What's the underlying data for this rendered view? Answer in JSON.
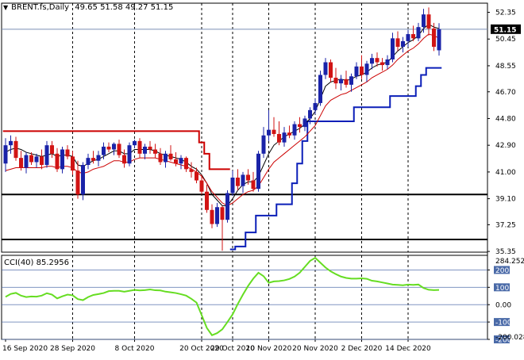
{
  "header": {
    "symbol_label": "BRENT.fs,Daily",
    "ohlc_text": "49.65 51.58 49.27 51.15",
    "current_price": "51.15"
  },
  "cci_panel": {
    "label": "CCI(40) 85.2956",
    "top_value": "284.2522",
    "bottom_value": "-200.028"
  },
  "colors": {
    "bull": "#1a23a8",
    "bear": "#d11414",
    "ma_fast": "#000000",
    "ma_red": "#cc0000",
    "stop_red": "#cc0000",
    "stop_blue": "#0b1fb8",
    "cci_line": "#66dd22",
    "cci_levels": "#4a6aa8",
    "support": "#000000"
  },
  "chart_data": [
    {
      "type": "candlestick",
      "y_ticks": [
        "52.35",
        "50.45",
        "48.55",
        "46.70",
        "44.80",
        "42.90",
        "41.00",
        "39.10",
        "37.25",
        "35.35"
      ],
      "ylim": [
        35.3,
        53.0
      ],
      "x_ticks": [
        "16 Sep 2020",
        "28 Sep 2020",
        "8 Oct 2020",
        "20 Oct 2020",
        "29 Oct 2020",
        "10 Nov 2020",
        "20 Nov 2020",
        "2 Dec 2020",
        "14 Dec 2020"
      ],
      "current_price_line": 51.15,
      "support_lines": [
        39.4,
        36.2
      ],
      "candles": [
        [
          41.6,
          43.4,
          41.0,
          42.9
        ],
        [
          42.9,
          43.6,
          42.3,
          43.2
        ],
        [
          43.2,
          43.5,
          41.8,
          42.0
        ],
        [
          42.0,
          42.5,
          41.1,
          41.3
        ],
        [
          41.3,
          42.4,
          40.9,
          42.2
        ],
        [
          42.2,
          42.4,
          41.5,
          41.7
        ],
        [
          41.7,
          42.3,
          41.3,
          42.1
        ],
        [
          42.1,
          42.6,
          41.2,
          41.5
        ],
        [
          41.5,
          43.2,
          41.3,
          42.9
        ],
        [
          42.9,
          43.2,
          42.0,
          42.3
        ],
        [
          42.3,
          42.7,
          41.0,
          41.2
        ],
        [
          41.2,
          42.8,
          40.9,
          42.6
        ],
        [
          42.6,
          42.9,
          41.9,
          42.1
        ],
        [
          42.1,
          42.5,
          40.8,
          41.1
        ],
        [
          41.1,
          41.8,
          39.1,
          39.4
        ],
        [
          39.4,
          41.7,
          39.0,
          41.5
        ],
        [
          41.5,
          42.3,
          41.2,
          42.0
        ],
        [
          42.0,
          42.5,
          41.6,
          41.8
        ],
        [
          41.8,
          42.5,
          41.4,
          42.2
        ],
        [
          42.2,
          43.1,
          41.9,
          42.8
        ],
        [
          42.8,
          43.1,
          42.4,
          42.6
        ],
        [
          42.6,
          43.1,
          42.2,
          43.0
        ],
        [
          43.0,
          43.3,
          42.0,
          42.2
        ],
        [
          42.2,
          42.6,
          41.3,
          41.6
        ],
        [
          41.6,
          43.1,
          41.4,
          42.9
        ],
        [
          42.9,
          43.3,
          42.7,
          43.2
        ],
        [
          43.2,
          43.4,
          42.0,
          42.3
        ],
        [
          42.3,
          43.0,
          41.9,
          42.8
        ],
        [
          42.8,
          43.2,
          42.3,
          42.6
        ],
        [
          42.6,
          43.0,
          42.0,
          42.3
        ],
        [
          42.3,
          42.7,
          41.5,
          41.7
        ],
        [
          41.7,
          42.5,
          41.3,
          42.3
        ],
        [
          42.3,
          42.9,
          41.8,
          41.9
        ],
        [
          41.9,
          42.4,
          41.4,
          41.6
        ],
        [
          41.6,
          42.2,
          41.2,
          42.0
        ],
        [
          42.0,
          42.1,
          41.0,
          41.2
        ],
        [
          41.2,
          41.7,
          40.6,
          41.0
        ],
        [
          41.0,
          41.3,
          40.2,
          40.4
        ],
        [
          40.4,
          40.8,
          39.4,
          39.6
        ],
        [
          39.6,
          40.1,
          38.1,
          38.3
        ],
        [
          38.3,
          38.7,
          37.0,
          37.3
        ],
        [
          37.3,
          38.8,
          37.1,
          38.5
        ],
        [
          38.5,
          38.6,
          35.4,
          37.6
        ],
        [
          37.6,
          39.7,
          37.4,
          39.5
        ],
        [
          39.5,
          41.1,
          39.3,
          40.6
        ],
        [
          40.6,
          41.2,
          39.7,
          40.0
        ],
        [
          40.0,
          41.0,
          39.5,
          40.8
        ],
        [
          40.8,
          41.2,
          40.1,
          40.4
        ],
        [
          40.4,
          41.0,
          39.6,
          39.8
        ],
        [
          39.8,
          42.5,
          39.6,
          42.3
        ],
        [
          42.3,
          44.2,
          42.0,
          43.6
        ],
        [
          43.6,
          45.4,
          43.2,
          44.0
        ],
        [
          44.0,
          44.9,
          43.5,
          43.7
        ],
        [
          43.7,
          44.6,
          42.9,
          43.1
        ],
        [
          43.1,
          44.2,
          42.8,
          43.8
        ],
        [
          43.8,
          44.3,
          43.4,
          43.6
        ],
        [
          43.6,
          44.6,
          43.3,
          44.4
        ],
        [
          44.4,
          44.9,
          43.8,
          44.2
        ],
        [
          44.2,
          45.0,
          43.9,
          44.8
        ],
        [
          44.8,
          45.6,
          44.4,
          45.4
        ],
        [
          45.4,
          46.2,
          45.1,
          45.9
        ],
        [
          45.9,
          48.2,
          45.7,
          47.9
        ],
        [
          47.9,
          49.1,
          47.6,
          48.8
        ],
        [
          48.8,
          49.0,
          47.4,
          47.7
        ],
        [
          47.7,
          48.4,
          46.9,
          47.3
        ],
        [
          47.3,
          47.9,
          46.8,
          47.6
        ],
        [
          47.6,
          48.2,
          47.0,
          47.2
        ],
        [
          47.2,
          48.0,
          46.7,
          47.8
        ],
        [
          47.8,
          48.8,
          47.6,
          48.5
        ],
        [
          48.5,
          49.3,
          47.6,
          47.9
        ],
        [
          47.9,
          48.9,
          47.4,
          48.7
        ],
        [
          48.7,
          49.4,
          48.3,
          49.1
        ],
        [
          49.1,
          49.5,
          48.5,
          48.8
        ],
        [
          48.8,
          49.1,
          48.2,
          48.6
        ],
        [
          48.6,
          49.3,
          48.3,
          49.0
        ],
        [
          49.0,
          50.9,
          48.8,
          50.5
        ],
        [
          50.5,
          51.0,
          49.6,
          49.9
        ],
        [
          49.9,
          50.6,
          49.5,
          50.3
        ],
        [
          50.3,
          51.1,
          49.9,
          50.8
        ],
        [
          50.8,
          51.4,
          50.3,
          50.5
        ],
        [
          50.5,
          51.6,
          50.3,
          51.3
        ],
        [
          51.3,
          52.6,
          50.9,
          52.2
        ],
        [
          52.2,
          52.7,
          50.7,
          51.2
        ],
        [
          51.2,
          51.6,
          49.6,
          49.9
        ],
        [
          49.65,
          51.58,
          49.27,
          51.15
        ]
      ],
      "series": [
        {
          "values": [
            42.4,
            42.6,
            42.7,
            42.6,
            42.4,
            42.3,
            42.2,
            42.1,
            42.2,
            42.3,
            42.1,
            42.2,
            42.2,
            42.1,
            41.5,
            41.4,
            41.6,
            41.8,
            41.9,
            42.1,
            42.3,
            42.5,
            42.5,
            42.3,
            42.3,
            42.6,
            42.6,
            42.6,
            42.6,
            42.5,
            42.3,
            42.2,
            42.1,
            42.0,
            41.9,
            41.7,
            41.4,
            41.2,
            40.8,
            40.2,
            39.4,
            39.0,
            38.6,
            38.6,
            39.1,
            39.7,
            40.1,
            40.3,
            40.3,
            40.7,
            41.5,
            42.3,
            42.9,
            43.2,
            43.5,
            43.7,
            43.9,
            44.1,
            44.4,
            44.8,
            45.3,
            46.2,
            47.1,
            47.4,
            47.5,
            47.6,
            47.5,
            47.6,
            47.8,
            47.9,
            48.1,
            48.4,
            48.6,
            48.7,
            48.8,
            49.2,
            49.6,
            49.9,
            50.2,
            50.4,
            50.7,
            51.2,
            51.5,
            51.3,
            51.2
          ]
        },
        {
          "values": [
            41.1,
            41.2,
            41.3,
            41.3,
            41.3,
            41.3,
            41.3,
            41.3,
            41.4,
            41.4,
            41.3,
            41.4,
            41.4,
            41.3,
            41.0,
            40.9,
            41.0,
            41.2,
            41.3,
            41.4,
            41.6,
            41.8,
            41.8,
            41.7,
            41.7,
            41.9,
            42.0,
            42.0,
            42.0,
            42.0,
            41.9,
            41.8,
            41.7,
            41.6,
            41.5,
            41.4,
            41.2,
            41.0,
            40.7,
            40.2,
            39.6,
            39.2,
            38.8,
            38.6,
            38.8,
            39.1,
            39.4,
            39.6,
            39.7,
            40.0,
            40.6,
            41.2,
            41.7,
            42.0,
            42.3,
            42.6,
            42.9,
            43.2,
            43.5,
            43.9,
            44.3,
            45.0,
            45.7,
            46.1,
            46.3,
            46.5,
            46.6,
            46.8,
            47.0,
            47.2,
            47.4,
            47.7,
            47.9,
            48.1,
            48.3,
            48.6,
            49.0,
            49.3,
            49.6,
            49.8,
            50.1,
            50.5,
            50.8,
            50.7,
            50.5
          ]
        }
      ],
      "step_lines": [
        {
          "values": [
            43.9,
            43.9,
            43.9,
            43.9,
            43.9,
            43.9,
            43.9,
            43.9,
            43.9,
            43.9,
            43.9,
            43.9,
            43.9,
            43.9,
            43.9,
            43.9,
            43.9,
            43.9,
            43.9,
            43.9,
            43.9,
            43.9,
            43.9,
            43.9,
            43.9,
            43.9,
            43.9,
            43.9,
            43.9,
            43.9,
            43.9,
            43.9,
            43.9,
            43.9,
            43.9,
            43.9,
            43.9,
            43.9,
            43.1,
            42.3,
            41.2,
            41.2,
            41.2,
            41.2,
            null,
            null,
            null,
            null,
            null,
            null,
            null,
            null,
            null,
            null,
            null,
            null,
            null,
            null,
            null,
            null,
            null,
            null,
            null,
            null,
            null,
            null,
            null,
            null,
            null,
            null,
            null,
            null,
            null,
            null,
            null,
            null,
            null,
            null,
            null,
            null,
            null,
            null,
            null,
            null,
            null
          ]
        },
        {
          "values": [
            null,
            null,
            null,
            null,
            null,
            null,
            null,
            null,
            null,
            null,
            null,
            null,
            null,
            null,
            null,
            null,
            null,
            null,
            null,
            null,
            null,
            null,
            null,
            null,
            null,
            null,
            null,
            null,
            null,
            null,
            null,
            null,
            null,
            null,
            null,
            null,
            null,
            null,
            null,
            null,
            null,
            null,
            null,
            null,
            35.5,
            35.7,
            35.7,
            36.7,
            36.7,
            37.9,
            37.9,
            37.9,
            37.9,
            38.7,
            38.7,
            38.7,
            40.2,
            41.6,
            43.2,
            44.6,
            44.6,
            44.6,
            44.6,
            44.6,
            44.6,
            44.6,
            44.6,
            44.6,
            45.6,
            45.6,
            45.6,
            45.6,
            45.6,
            45.6,
            45.6,
            46.4,
            46.4,
            46.4,
            46.4,
            46.4,
            47.1,
            47.9,
            48.4,
            48.4,
            48.4
          ]
        }
      ]
    },
    {
      "type": "line",
      "y_ticks": [
        "200",
        "100",
        "0.00",
        "-100",
        "-200"
      ],
      "ylim": [
        -200.028,
        284.2522
      ],
      "series": [
        {
          "values": [
            45,
            62,
            68,
            52,
            44,
            47,
            46,
            52,
            66,
            58,
            36,
            48,
            58,
            54,
            32,
            26,
            44,
            56,
            61,
            67,
            78,
            80,
            80,
            75,
            80,
            85,
            82,
            84,
            88,
            83,
            82,
            75,
            71,
            67,
            60,
            52,
            34,
            12,
            -60,
            -134,
            -176,
            -164,
            -142,
            -100,
            -56,
            4,
            58,
            108,
            150,
            184,
            164,
            126,
            134,
            136,
            140,
            148,
            162,
            184,
            218,
            252,
            270,
            242,
            214,
            192,
            176,
            162,
            154,
            150,
            150,
            152,
            149,
            138,
            134,
            128,
            122,
            116,
            114,
            112,
            116,
            114,
            116,
            96,
            86,
            84,
            85
          ]
        }
      ]
    }
  ]
}
